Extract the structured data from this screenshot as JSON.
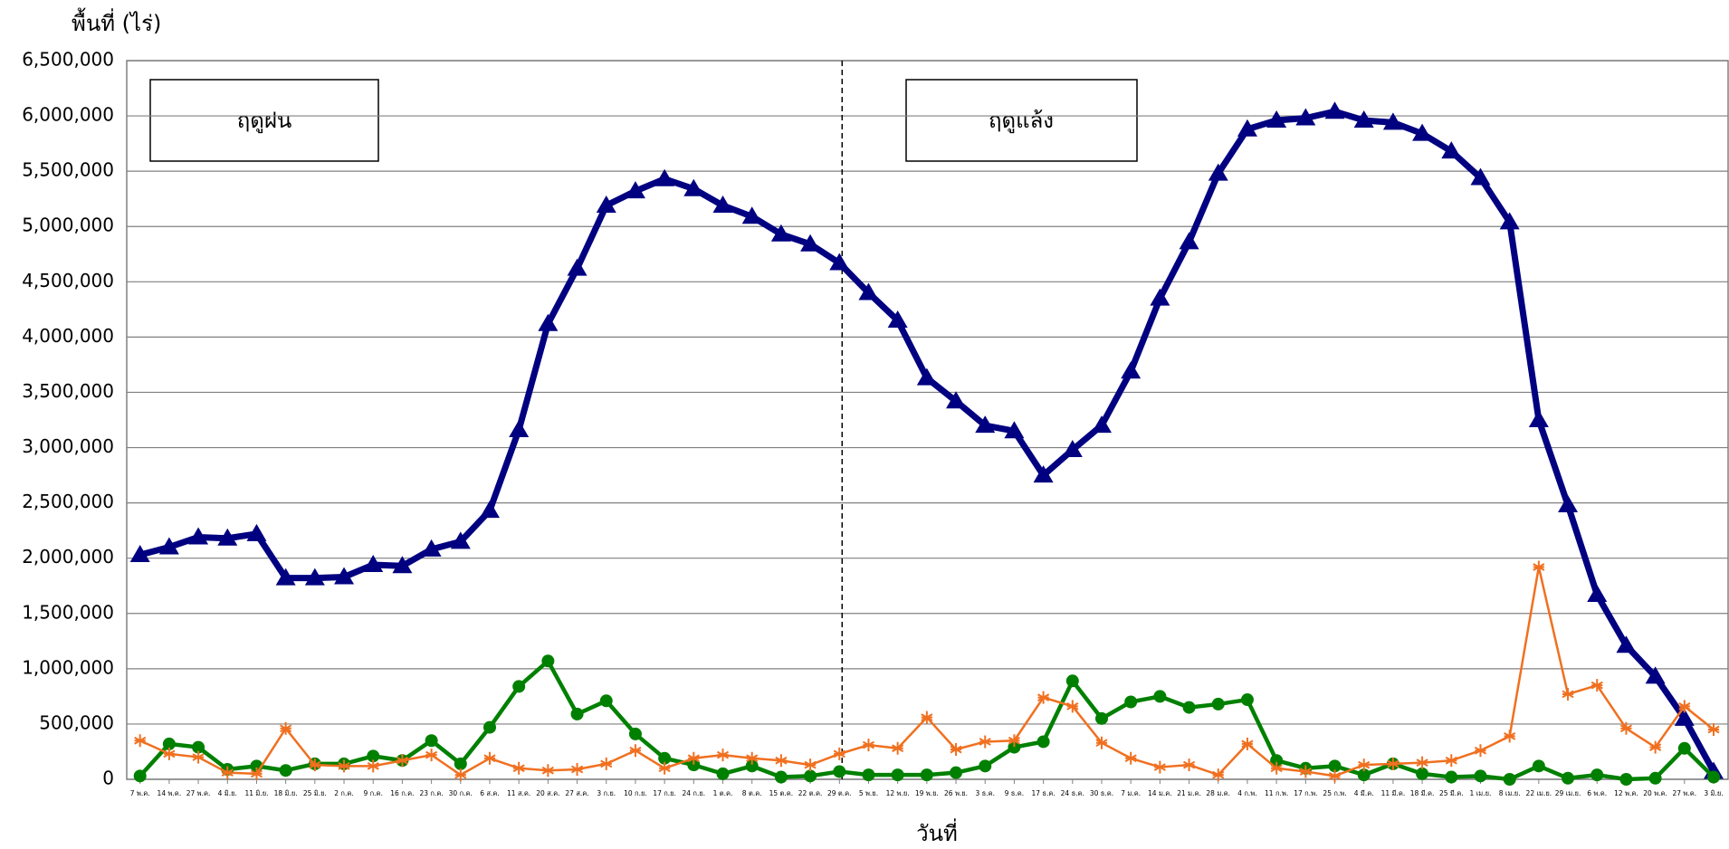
{
  "chart_data": {
    "type": "line",
    "y_label": "พื้นที่ (ไร่)",
    "x_label": "วันที่",
    "annotations": [
      "ฤดูฝน",
      "ฤดูแล้ง"
    ],
    "categories": [
      "7 พ.ค.",
      "14 พ.ค.",
      "27 พ.ค.",
      "4 มิ.ย.",
      "11 มิ.ย.",
      "18 มิ.ย.",
      "25 มิ.ย.",
      "2 ก.ค.",
      "9 ก.ค.",
      "16 ก.ค.",
      "23 ก.ค.",
      "30 ก.ค.",
      "6 ส.ค.",
      "11 ส.ค.",
      "20 ส.ค.",
      "27 ส.ค.",
      "3 ก.ย.",
      "10 ก.ย.",
      "17 ก.ย.",
      "24 ก.ย.",
      "1 ต.ค.",
      "8 ต.ค.",
      "15 ต.ค.",
      "22 ต.ค.",
      "29 ต.ค.",
      "5 พ.ย.",
      "12 พ.ย.",
      "19 พ.ย.",
      "26 พ.ย.",
      "3 ธ.ค.",
      "9 ธ.ค.",
      "17 ธ.ค.",
      "24 ธ.ค.",
      "30 ธ.ค.",
      "7 ม.ค.",
      "14 ม.ค.",
      "21 ม.ค.",
      "28 ม.ค.",
      "4 ก.พ.",
      "11 ก.พ.",
      "17 ก.พ.",
      "25 ก.พ.",
      "4 มี.ค.",
      "11 มี.ค.",
      "18 มี.ค.",
      "25 มี.ค.",
      "1 เม.ย.",
      "8 เม.ย.",
      "22 เม.ย.",
      "29 เม.ย.",
      "6 พ.ค.",
      "12 พ.ค.",
      "20 พ.ค.",
      "27 พ.ค.",
      "3 มิ.ย."
    ],
    "series": [
      {
        "color": "#000080",
        "marker": "triangle",
        "values": [
          2030000,
          2100000,
          2190000,
          2180000,
          2220000,
          1820000,
          1820000,
          1830000,
          1940000,
          1930000,
          2080000,
          2150000,
          2430000,
          3160000,
          4120000,
          4620000,
          5190000,
          5320000,
          5430000,
          5340000,
          5190000,
          5090000,
          4930000,
          4840000,
          4670000,
          4400000,
          4150000,
          3630000,
          3420000,
          3200000,
          3150000,
          2750000,
          2980000,
          3200000,
          3690000,
          4350000,
          4860000,
          5480000,
          5880000,
          5960000,
          5980000,
          6040000,
          5960000,
          5940000,
          5840000,
          5680000,
          5440000,
          5040000,
          3250000,
          2480000,
          1670000,
          1210000,
          930000,
          550000,
          70000
        ]
      },
      {
        "color": "#008000",
        "marker": "circle",
        "values": [
          30000,
          320000,
          290000,
          90000,
          120000,
          80000,
          140000,
          140000,
          210000,
          170000,
          350000,
          140000,
          470000,
          840000,
          1070000,
          590000,
          710000,
          410000,
          190000,
          130000,
          50000,
          120000,
          20000,
          30000,
          70000,
          40000,
          40000,
          40000,
          60000,
          120000,
          290000,
          340000,
          890000,
          550000,
          700000,
          750000,
          650000,
          680000,
          720000,
          170000,
          100000,
          120000,
          40000,
          140000,
          50000,
          20000,
          30000,
          0,
          120000,
          10000,
          40000,
          0,
          10000,
          280000,
          20000
        ]
      },
      {
        "color": "#f07020",
        "marker": "star",
        "values": [
          350000,
          230000,
          200000,
          60000,
          50000,
          460000,
          130000,
          120000,
          120000,
          170000,
          220000,
          40000,
          190000,
          100000,
          80000,
          90000,
          140000,
          260000,
          100000,
          190000,
          220000,
          190000,
          170000,
          130000,
          230000,
          310000,
          280000,
          560000,
          270000,
          340000,
          350000,
          740000,
          660000,
          330000,
          190000,
          110000,
          130000,
          40000,
          320000,
          100000,
          70000,
          30000,
          130000,
          140000,
          150000,
          170000,
          260000,
          390000,
          1920000,
          770000,
          850000,
          460000,
          290000,
          660000,
          450000
        ]
      }
    ],
    "ylim": [
      0,
      6500000
    ],
    "yticks": [
      0,
      {
        "value": 500000,
        "label": "500,000"
      },
      {
        "value": 1000000,
        "label": "1,000,000"
      },
      {
        "value": 1500000,
        "label": "1,500,000"
      },
      {
        "value": 2000000,
        "label": "2,000,000"
      },
      {
        "value": 2500000,
        "label": "2,500,000"
      },
      {
        "value": 3000000,
        "label": "3,000,000"
      },
      {
        "value": 3500000,
        "label": "3,500,000"
      },
      {
        "value": 4000000,
        "label": "4,000,000"
      },
      {
        "value": 4500000,
        "label": "4,500,000"
      },
      {
        "value": 5000000,
        "label": "5,000,000"
      },
      {
        "value": 5500000,
        "label": "5,500,000"
      },
      {
        "value": 6000000,
        "label": "6,000,000"
      },
      {
        "value": 6500000,
        "label": "6,500,000"
      }
    ],
    "grid": true
  }
}
